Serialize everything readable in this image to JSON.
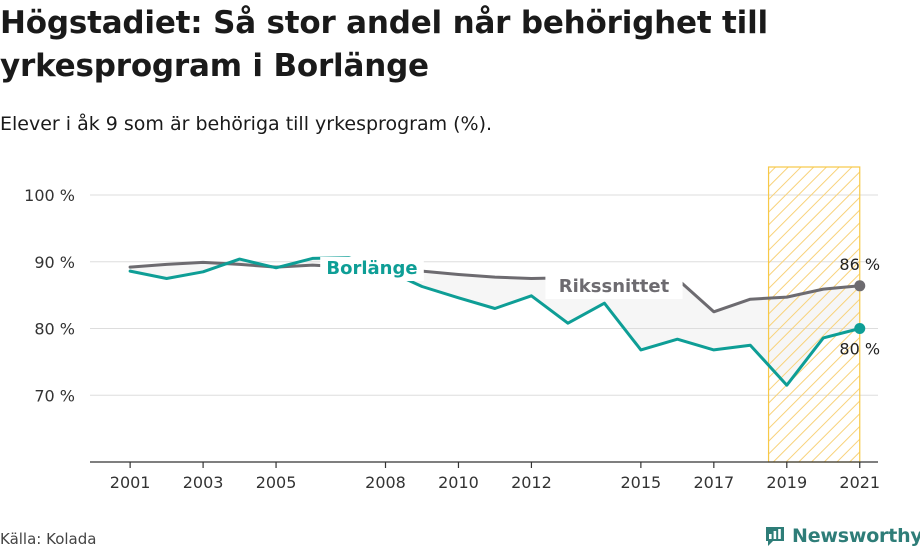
{
  "title": "Högstadiet: Så stor andel når behörighet till yrkesprogram i Borlänge",
  "subtitle": "Elever i åk 9 som är behöriga till yrkesprogram (%).",
  "source": "Källa: Kolada",
  "brand": "Newsworthy",
  "colors": {
    "borlange": "#0e9e96",
    "riket": "#6d6b70",
    "band": "#f5f5f5",
    "highlight": "#f7c948",
    "grid": "#dddddd",
    "axis": "#333333"
  },
  "chart_data": {
    "type": "line",
    "title": "Högstadiet: Så stor andel når behörighet till yrkesprogram i Borlänge",
    "subtitle": "Elever i åk 9 som är behöriga till yrkesprogram (%).",
    "xlim": [
      1999.9,
      2021.5
    ],
    "ylim": [
      60,
      104.5
    ],
    "y_ticks": [
      70,
      80,
      90,
      100
    ],
    "y_tick_labels": [
      "70 %",
      "80 %",
      "90 %",
      "100 %"
    ],
    "x_ticks": [
      2001,
      2003,
      2005,
      2008,
      2010,
      2012,
      2015,
      2017,
      2019,
      2021
    ],
    "x_tick_labels": [
      "2001",
      "2003",
      "2005",
      "2008",
      "2010",
      "2012",
      "2015",
      "2017",
      "2019",
      "2021"
    ],
    "grid": "horizontal",
    "highlight_range": [
      2018.5,
      2021
    ],
    "x": [
      2001,
      2002,
      2003,
      2004,
      2005,
      2006,
      2007,
      2008,
      2009,
      2010,
      2011,
      2012,
      2013,
      2014,
      2015,
      2016,
      2017,
      2018,
      2019,
      2020,
      2021
    ],
    "series": [
      {
        "name": "Borlänge",
        "values": [
          88.6,
          87.5,
          88.5,
          90.4,
          89.1,
          90.5,
          90.6,
          88.8,
          86.3,
          84.6,
          83.0,
          84.9,
          80.8,
          83.8,
          76.8,
          78.4,
          76.8,
          77.5,
          71.5,
          78.6,
          80.0
        ],
        "end_label": "80 %"
      },
      {
        "name": "Rikssnittet",
        "values": [
          89.2,
          89.6,
          89.9,
          89.6,
          89.2,
          89.5,
          89.2,
          89.0,
          88.6,
          88.1,
          87.7,
          87.5,
          87.6,
          87.8,
          87.6,
          87.4,
          82.5,
          84.4,
          84.7,
          85.9,
          86.4
        ],
        "end_label": "86 %"
      }
    ]
  }
}
